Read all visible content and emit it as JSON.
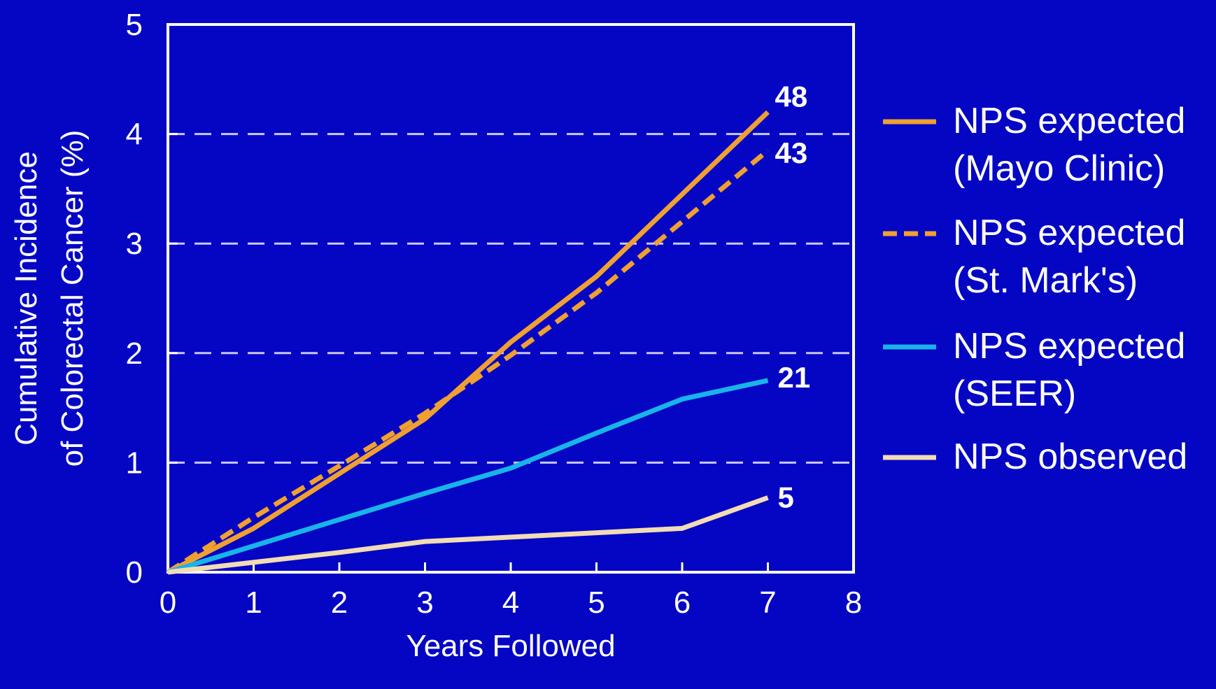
{
  "chart_data": {
    "type": "line",
    "xlabel": "Years Followed",
    "ylabel_lines": [
      "Cumulative Incidence",
      "of Colorectal Cancer (%)"
    ],
    "xlim": [
      0,
      8
    ],
    "ylim": [
      0,
      5
    ],
    "xticks": [
      0,
      1,
      2,
      3,
      4,
      5,
      6,
      7,
      8
    ],
    "yticks": [
      0,
      1,
      2,
      3,
      4,
      5
    ],
    "grid": "horizontal-dashed",
    "legend_position": "right",
    "colors": {
      "background": "#0505c4",
      "axes": "#ffffff",
      "grid": "#c8c8ff"
    },
    "series": [
      {
        "name_lines": [
          "NPS expected",
          "(Mayo Clinic)"
        ],
        "color": "#f0a030",
        "dash": "solid",
        "end_label": "48",
        "x": [
          0,
          1,
          2,
          3,
          4,
          5,
          6,
          7
        ],
        "y": [
          0,
          0.4,
          0.9,
          1.4,
          2.1,
          2.7,
          3.45,
          4.2
        ]
      },
      {
        "name_lines": [
          "NPS expected",
          "(St. Mark's)"
        ],
        "color": "#f0a030",
        "dash": "dashed",
        "end_label": "43",
        "x": [
          0,
          1,
          2,
          3,
          4,
          5,
          6,
          7
        ],
        "y": [
          0,
          0.5,
          0.97,
          1.45,
          1.98,
          2.55,
          3.2,
          3.85
        ]
      },
      {
        "name_lines": [
          "NPS expected",
          "(SEER)"
        ],
        "color": "#18b4e8",
        "dash": "solid",
        "end_label": "21",
        "x": [
          0,
          1,
          2,
          3,
          4,
          5,
          6,
          7
        ],
        "y": [
          0,
          0.24,
          0.48,
          0.72,
          0.95,
          1.27,
          1.58,
          1.75
        ]
      },
      {
        "name_lines": [
          "NPS observed"
        ],
        "color": "#f2dcb4",
        "dash": "solid",
        "end_label": "5",
        "x": [
          0,
          1,
          2,
          3,
          4,
          5,
          6,
          7
        ],
        "y": [
          0,
          0.09,
          0.18,
          0.28,
          0.32,
          0.36,
          0.4,
          0.68
        ]
      }
    ]
  }
}
